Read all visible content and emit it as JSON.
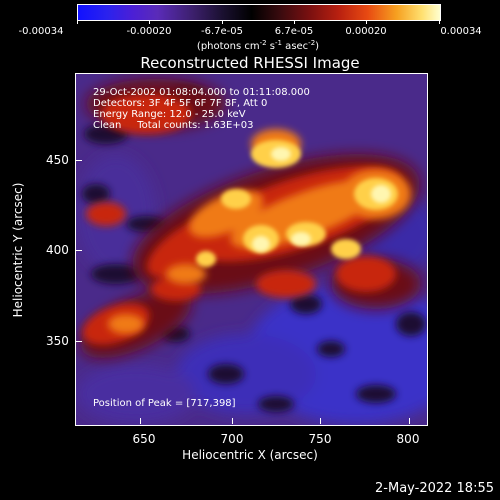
{
  "colorbar": {
    "tick_labels": [
      "-0.00034",
      "-0.00020",
      "-6.7e-05",
      "6.7e-05",
      "0.00020",
      "0.00034"
    ],
    "units_text": "(photons cm",
    "units_sup1": "-2",
    "units_mid": " s",
    "units_sup2": "-1",
    "units_mid2": " asec",
    "units_sup3": "-2",
    "units_end": ")"
  },
  "title": "Reconstructed RHESSI Image",
  "info_lines": {
    "line1": "29-Oct-2002 01:08:04.000 to 01:11:08.000",
    "line2": "Detectors: 3F 4F 5F 6F 7F 8F, Att 0",
    "line3": "Energy Range: 12.0 - 25.0 keV",
    "line4": "Clean     Total counts: 1.63E+03"
  },
  "peak_text": "Position of Peak = [717,398]",
  "x_axis": {
    "title": "Heliocentric X (arcsec)",
    "ticks": [
      "650",
      "700",
      "750",
      "800"
    ]
  },
  "y_axis": {
    "title": "Heliocentric Y (arcsec)",
    "ticks": [
      "450",
      "400",
      "350"
    ]
  },
  "footer_timestamp": "2-May-2022 18:55",
  "colors": {
    "background": "#000000",
    "bright_core": "#ffe070",
    "hot": "#e84a12",
    "dark_red": "#7a1010",
    "purple": "#4a2a8a",
    "blue": "#2a22ee"
  }
}
